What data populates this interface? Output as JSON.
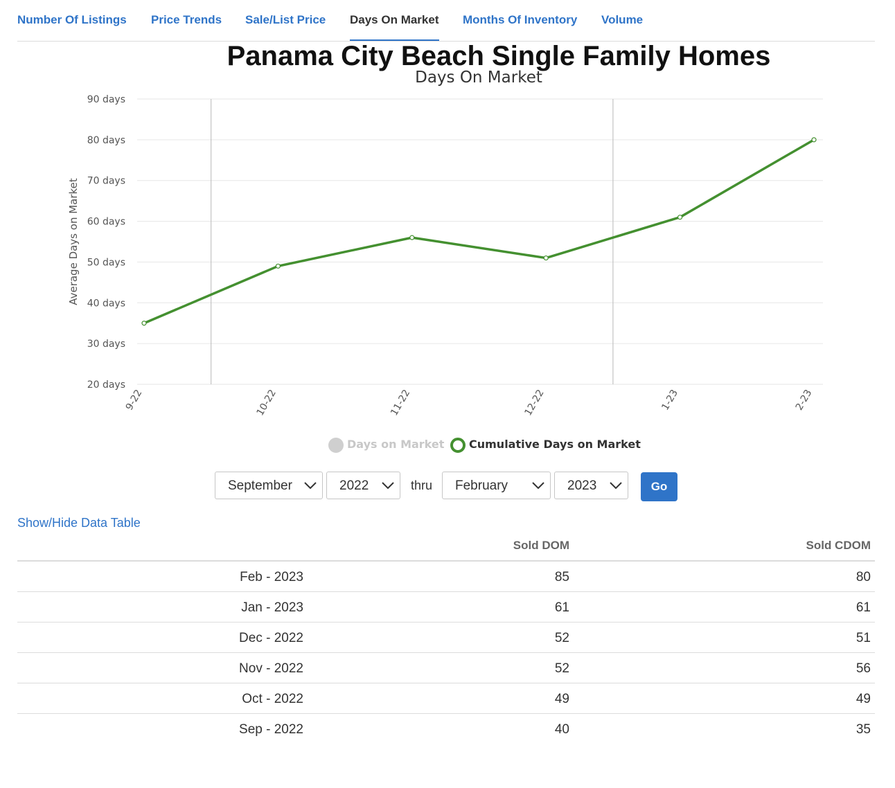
{
  "tabs": [
    {
      "label": "Number Of Listings",
      "active": false
    },
    {
      "label": "Price Trends",
      "active": false
    },
    {
      "label": "Sale/List Price",
      "active": false
    },
    {
      "label": "Days On Market",
      "active": true
    },
    {
      "label": "Months Of Inventory",
      "active": false
    },
    {
      "label": "Volume",
      "active": false
    }
  ],
  "chart_data": {
    "type": "line",
    "title": "Panama City Beach Single Family Homes",
    "subtitle": "Days On Market",
    "ylabel": "Average Days on Market",
    "xlabel": "",
    "categories": [
      "9-22",
      "10-22",
      "11-22",
      "12-22",
      "1-23",
      "2-23"
    ],
    "y_ticks": [
      "20 days",
      "30 days",
      "40 days",
      "50 days",
      "60 days",
      "70 days",
      "80 days",
      "90 days"
    ],
    "ylim": [
      20,
      90
    ],
    "grid": true,
    "series": [
      {
        "name": "Days on Market",
        "visible": false,
        "color": "#cfcfcf",
        "values": [
          40,
          49,
          52,
          52,
          61,
          85
        ]
      },
      {
        "name": "Cumulative Days on Market",
        "visible": true,
        "color": "#449030",
        "values": [
          35,
          49,
          56,
          51,
          61,
          80
        ]
      }
    ],
    "legend_position": "bottom"
  },
  "controls": {
    "start_month": "September",
    "start_year": "2022",
    "thru_label": "thru",
    "end_month": "February",
    "end_year": "2023",
    "go_label": "Go"
  },
  "table_toggle_label": "Show/Hide Data Table",
  "table": {
    "headers": [
      "",
      "Sold DOM",
      "Sold CDOM"
    ],
    "rows": [
      [
        "Feb - 2023",
        "85",
        "80"
      ],
      [
        "Jan - 2023",
        "61",
        "61"
      ],
      [
        "Dec - 2022",
        "52",
        "51"
      ],
      [
        "Nov - 2022",
        "52",
        "56"
      ],
      [
        "Oct - 2022",
        "49",
        "49"
      ],
      [
        "Sep - 2022",
        "40",
        "35"
      ]
    ]
  }
}
